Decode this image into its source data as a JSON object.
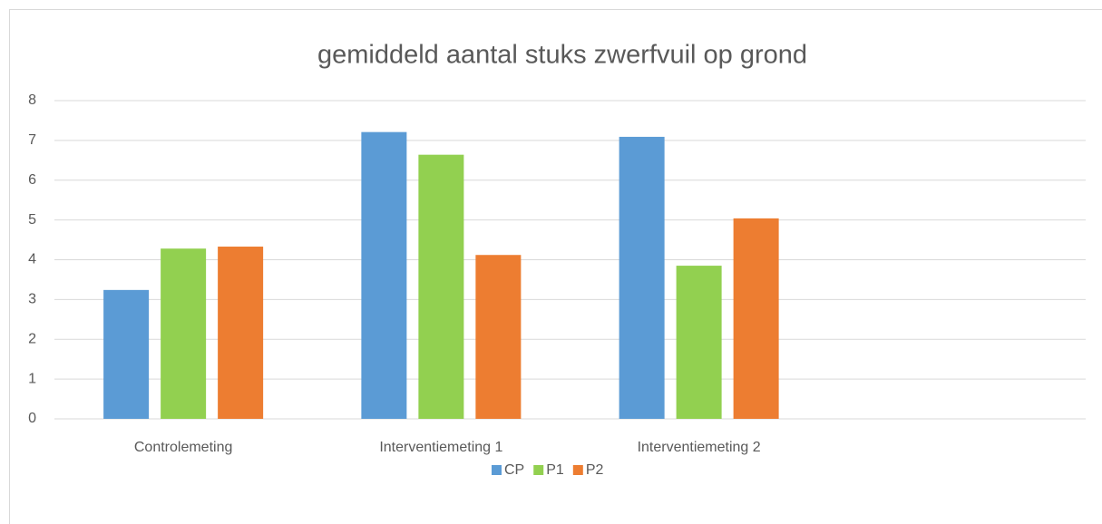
{
  "chart_data": {
    "type": "bar",
    "title": "gemiddeld aantal stuks zwerfvuil op grond",
    "categories": [
      "Controlemeting",
      "Interventiemeting 1",
      "Interventiemeting 2",
      null
    ],
    "series": [
      {
        "name": "CP",
        "color": "#5b9bd5",
        "values": [
          3.24,
          7.21,
          7.09,
          null
        ]
      },
      {
        "name": "P1",
        "color": "#92d050",
        "values": [
          4.28,
          6.64,
          3.85,
          null
        ]
      },
      {
        "name": "P2",
        "color": "#ed7d31",
        "values": [
          4.33,
          4.12,
          5.04,
          null
        ]
      }
    ],
    "ylim": [
      0,
      8
    ],
    "yticks": [
      0,
      1,
      2,
      3,
      4,
      5,
      6,
      7,
      8
    ],
    "grid": true,
    "legend": "bottom"
  }
}
